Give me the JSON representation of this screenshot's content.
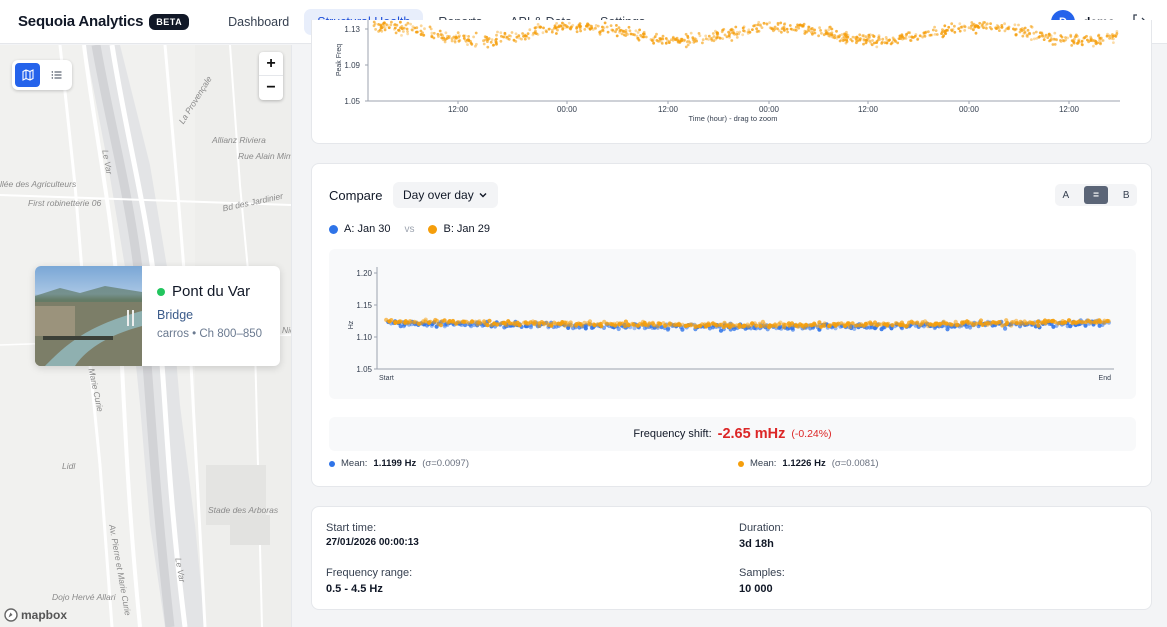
{
  "header": {
    "brand": "Sequoia Analytics",
    "badge": "BETA",
    "nav": [
      {
        "label": "Dashboard"
      },
      {
        "label": "Structural Health"
      },
      {
        "label": "Reports"
      },
      {
        "label": "API & Data"
      },
      {
        "label": "Settings"
      }
    ],
    "active_nav": "Structural Health",
    "user_initial": "D",
    "user_name": "demo"
  },
  "map": {
    "street_labels": [
      "La Provençale",
      "Allianz Riviera",
      "Rue Alain Mim",
      "Le Var",
      "llée des Agriculteurs",
      "First robinetterie 06",
      "Bd des Jardinier",
      "Nic",
      "Marie Curie",
      "Lidl",
      "Stade des Arboras",
      "Av. Pierre et Marie Curie",
      "Le Var",
      "Dojo Hervé Allari"
    ],
    "attribution": "mapbox",
    "zoom_in": "+",
    "zoom_out": "−"
  },
  "site": {
    "name": "Pont du Var",
    "type": "Bridge",
    "meta": "carros • Ch 800–850",
    "status_color": "#22c55e"
  },
  "top_chart": {
    "ylabel": "Peak Freq",
    "y_ticks": [
      "1.13",
      "1.09",
      "1.05"
    ],
    "x_ticks": [
      "12:00",
      "00:00",
      "12:00",
      "00:00",
      "12:00",
      "00:00",
      "12:00"
    ],
    "xlabel": "Time (hour) - drag to zoom"
  },
  "compare": {
    "title": "Compare",
    "mode": "Day over day",
    "toggle": [
      "A",
      "=",
      "B"
    ],
    "series_a": {
      "label": "A: Jan 30",
      "color": "#2f74e8"
    },
    "vs": "vs",
    "series_b": {
      "label": "B: Jan 29",
      "color": "#f59e0b"
    },
    "shift_label": "Frequency shift:",
    "shift_value": "-2.65 mHz",
    "shift_pct": "(-0.24%)",
    "mean_a": {
      "label": "Mean:",
      "value": "1.1199 Hz",
      "sigma": "(σ=0.0097)"
    },
    "mean_b": {
      "label": "Mean:",
      "value": "1.1226 Hz",
      "sigma": "(σ=0.0081)"
    }
  },
  "chart_data": {
    "type": "scatter",
    "ylabel": "Hz",
    "ylim": [
      1.05,
      1.2
    ],
    "y_ticks": [
      "1.20",
      "1.15",
      "1.10",
      "1.05"
    ],
    "x_ticks": [
      "Start",
      "End"
    ],
    "series": [
      {
        "name": "A: Jan 30",
        "mean": 1.1199,
        "sigma": 0.0097,
        "color": "#2f74e8"
      },
      {
        "name": "B: Jan 29",
        "mean": 1.1226,
        "sigma": 0.0081,
        "color": "#f59e0b"
      }
    ]
  },
  "stats": {
    "start_label": "Start time:",
    "start_value": "27/01/2026 00:00:13",
    "duration_label": "Duration:",
    "duration_value": "3d 18h",
    "freq_label": "Frequency range:",
    "freq_value": "0.5 - 4.5 Hz",
    "samples_label": "Samples:",
    "samples_value": "10 000"
  }
}
